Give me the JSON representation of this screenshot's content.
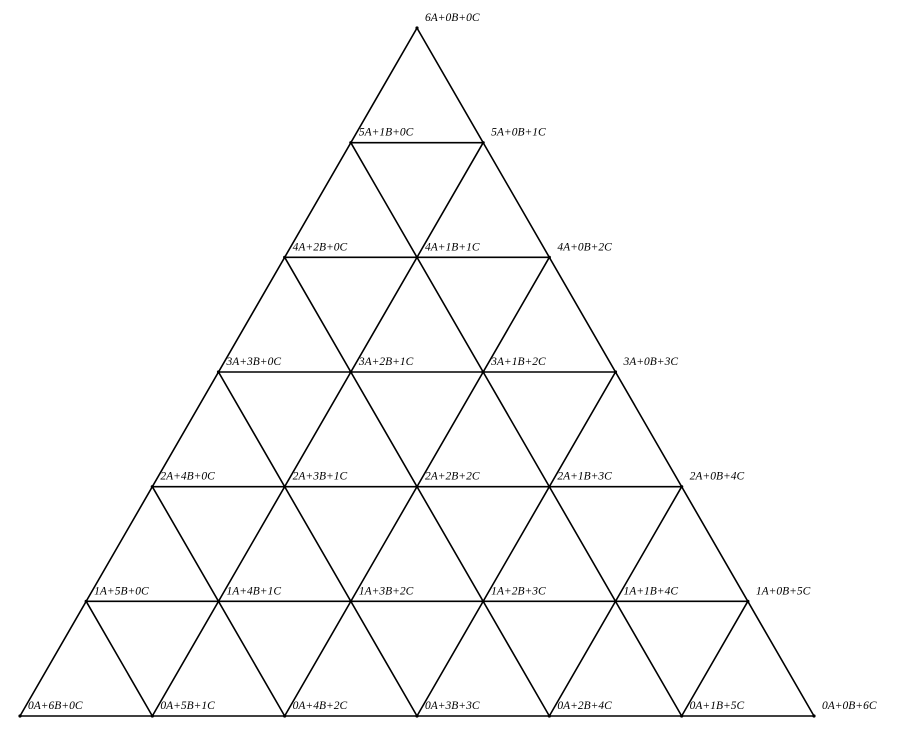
{
  "diagram": {
    "kind": "ternary-mixture-lattice",
    "subdivisions": 6,
    "line_color": "#000000",
    "background": "#ffffff",
    "rows": [
      [
        "6A+0B+0C"
      ],
      [
        "5A+1B+0C",
        "5A+0B+1C"
      ],
      [
        "4A+2B+0C",
        "4A+1B+1C",
        "4A+0B+2C"
      ],
      [
        "3A+3B+0C",
        "3A+2B+1C",
        "3A+1B+2C",
        "3A+0B+3C"
      ],
      [
        "2A+4B+0C",
        "2A+3B+1C",
        "2A+2B+2C",
        "2A+1B+3C",
        "2A+0B+4C"
      ],
      [
        "1A+5B+0C",
        "1A+4B+1C",
        "1A+3B+2C",
        "1A+2B+3C",
        "1A+1B+4C",
        "1A+0B+5C"
      ],
      [
        "0A+6B+0C",
        "0A+5B+1C",
        "0A+4B+2C",
        "0A+3B+3C",
        "0A+2B+4C",
        "0A+1B+5C",
        "0A+0B+6C"
      ]
    ]
  }
}
